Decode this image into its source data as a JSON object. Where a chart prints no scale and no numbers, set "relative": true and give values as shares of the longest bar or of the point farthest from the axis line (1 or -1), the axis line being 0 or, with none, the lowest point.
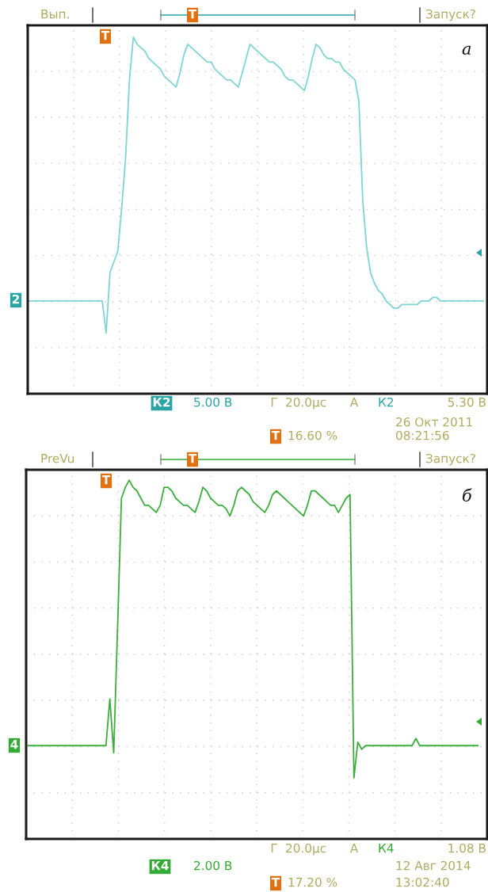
{
  "chart_data": [
    {
      "type": "line",
      "relative": true,
      "grid": true,
      "marker": "none",
      "line_style": "solid",
      "categories": [
        null,
        null,
        null,
        null,
        null,
        null,
        null,
        null,
        null,
        null,
        null,
        null,
        null,
        null,
        null,
        null,
        null,
        null,
        null,
        null,
        null,
        null,
        null,
        null,
        null,
        null,
        null,
        null,
        null,
        null,
        null,
        null,
        null,
        null,
        null,
        null,
        null,
        null,
        null,
        null,
        null,
        null,
        null,
        null,
        null,
        null,
        null,
        null,
        null,
        null,
        null,
        null,
        null,
        null,
        null,
        null,
        null,
        null,
        null,
        null,
        null,
        null,
        null,
        null,
        null,
        null,
        null,
        null,
        null,
        null,
        null,
        null,
        null,
        null,
        null,
        null,
        null,
        null,
        null,
        null,
        null,
        null,
        null,
        null,
        null,
        null,
        null,
        null,
        null,
        null,
        null,
        null,
        null,
        null,
        null,
        null,
        null,
        null,
        null,
        null,
        null,
        null,
        null,
        null,
        null,
        null,
        null,
        null,
        null,
        null,
        null,
        null,
        null,
        null,
        null,
        null,
        null,
        null
      ],
      "series": [
        {
          "color": "#7fd4d4",
          "values": [
            0.26,
            0.26,
            0.26,
            0.26,
            0.26,
            0.26,
            0.26,
            0.26,
            0.26,
            0.26,
            0.26,
            0.26,
            0.26,
            0.26,
            0.26,
            0.26,
            0.26,
            0.26,
            0.26,
            0.26,
            0.17,
            0.34,
            0.37,
            0.4,
            0.52,
            0.66,
            0.88,
            1.0,
            0.98,
            0.97,
            0.96,
            0.94,
            0.93,
            0.92,
            0.91,
            0.89,
            0.88,
            0.87,
            0.86,
            0.9,
            0.95,
            0.98,
            0.97,
            0.96,
            0.95,
            0.94,
            0.93,
            0.93,
            0.91,
            0.9,
            0.89,
            0.88,
            0.88,
            0.87,
            0.86,
            0.9,
            0.94,
            0.98,
            0.97,
            0.96,
            0.95,
            0.94,
            0.93,
            0.93,
            0.92,
            0.91,
            0.89,
            0.88,
            0.88,
            0.87,
            0.86,
            0.85,
            0.89,
            0.94,
            0.98,
            0.97,
            0.95,
            0.94,
            0.94,
            0.93,
            0.93,
            0.91,
            0.9,
            0.89,
            0.88,
            0.82,
            0.54,
            0.41,
            0.34,
            0.31,
            0.29,
            0.28,
            0.26,
            0.25,
            0.24,
            0.24,
            0.25,
            0.25,
            0.25,
            0.25,
            0.25,
            0.26,
            0.26,
            0.26,
            0.27,
            0.27,
            0.26,
            0.26,
            0.26,
            0.26,
            0.26,
            0.26,
            0.26,
            0.26,
            0.26,
            0.26,
            0.26,
            0.26
          ]
        }
      ],
      "annotations": [
        "Вып.",
        "Запуск?",
        "а",
        "2",
        "К2",
        "5.00 В",
        "Г",
        "20.0µс",
        "А",
        "К2",
        "5.30 В",
        "26 Окт 2011",
        "08:21:56",
        "16.60 %",
        "T",
        "T",
        "T"
      ]
    },
    {
      "type": "line",
      "relative": true,
      "grid": true,
      "marker": "none",
      "line_style": "solid",
      "categories": [
        null,
        null,
        null,
        null,
        null,
        null,
        null,
        null,
        null,
        null,
        null,
        null,
        null,
        null,
        null,
        null,
        null,
        null,
        null,
        null,
        null,
        null,
        null,
        null,
        null,
        null,
        null,
        null,
        null,
        null,
        null,
        null,
        null,
        null,
        null,
        null,
        null,
        null,
        null,
        null,
        null,
        null,
        null,
        null,
        null,
        null,
        null,
        null,
        null,
        null,
        null,
        null,
        null,
        null,
        null,
        null,
        null,
        null,
        null,
        null,
        null,
        null,
        null,
        null,
        null,
        null,
        null,
        null,
        null,
        null,
        null,
        null,
        null,
        null,
        null,
        null,
        null,
        null,
        null,
        null,
        null,
        null,
        null,
        null,
        null,
        null,
        null,
        null,
        null,
        null,
        null,
        null,
        null,
        null,
        null,
        null,
        null,
        null,
        null,
        null,
        null,
        null,
        null,
        null,
        null,
        null,
        null,
        null,
        null,
        null,
        null,
        null,
        null,
        null,
        null,
        null,
        null
      ],
      "series": [
        {
          "color": "#3cae3c",
          "values": [
            0.26,
            0.26,
            0.26,
            0.26,
            0.26,
            0.26,
            0.26,
            0.26,
            0.26,
            0.26,
            0.26,
            0.26,
            0.26,
            0.26,
            0.26,
            0.26,
            0.26,
            0.26,
            0.26,
            0.26,
            0.26,
            0.39,
            0.24,
            0.59,
            0.95,
            0.98,
            1.0,
            0.98,
            0.97,
            0.95,
            0.93,
            0.93,
            0.92,
            0.91,
            0.93,
            0.98,
            0.98,
            0.97,
            0.95,
            0.94,
            0.93,
            0.93,
            0.92,
            0.91,
            0.94,
            0.98,
            0.97,
            0.95,
            0.94,
            0.93,
            0.93,
            0.92,
            0.9,
            0.93,
            0.97,
            0.98,
            0.97,
            0.96,
            0.94,
            0.93,
            0.92,
            0.91,
            0.93,
            0.96,
            0.97,
            0.96,
            0.95,
            0.94,
            0.93,
            0.92,
            0.91,
            0.9,
            0.93,
            0.97,
            0.97,
            0.96,
            0.95,
            0.94,
            0.93,
            0.93,
            0.91,
            0.93,
            0.95,
            0.96,
            0.17,
            0.27,
            0.25,
            0.26,
            0.26,
            0.26,
            0.26,
            0.26,
            0.26,
            0.26,
            0.26,
            0.26,
            0.26,
            0.26,
            0.26,
            0.26,
            0.28,
            0.26,
            0.26,
            0.26,
            0.26,
            0.26,
            0.26,
            0.26,
            0.26,
            0.26,
            0.26,
            0.26,
            0.26,
            0.26,
            0.26,
            0.26,
            0.26
          ]
        }
      ],
      "annotations": [
        "PreVu",
        "Запуск?",
        "б",
        "4",
        "Г",
        "20.0µс",
        "А",
        "К4",
        "1.08 В",
        "К4",
        "2.00 В",
        "17.20 %",
        "12 Авг 2014",
        "13:02:40",
        "T",
        "T",
        "T"
      ]
    }
  ]
}
